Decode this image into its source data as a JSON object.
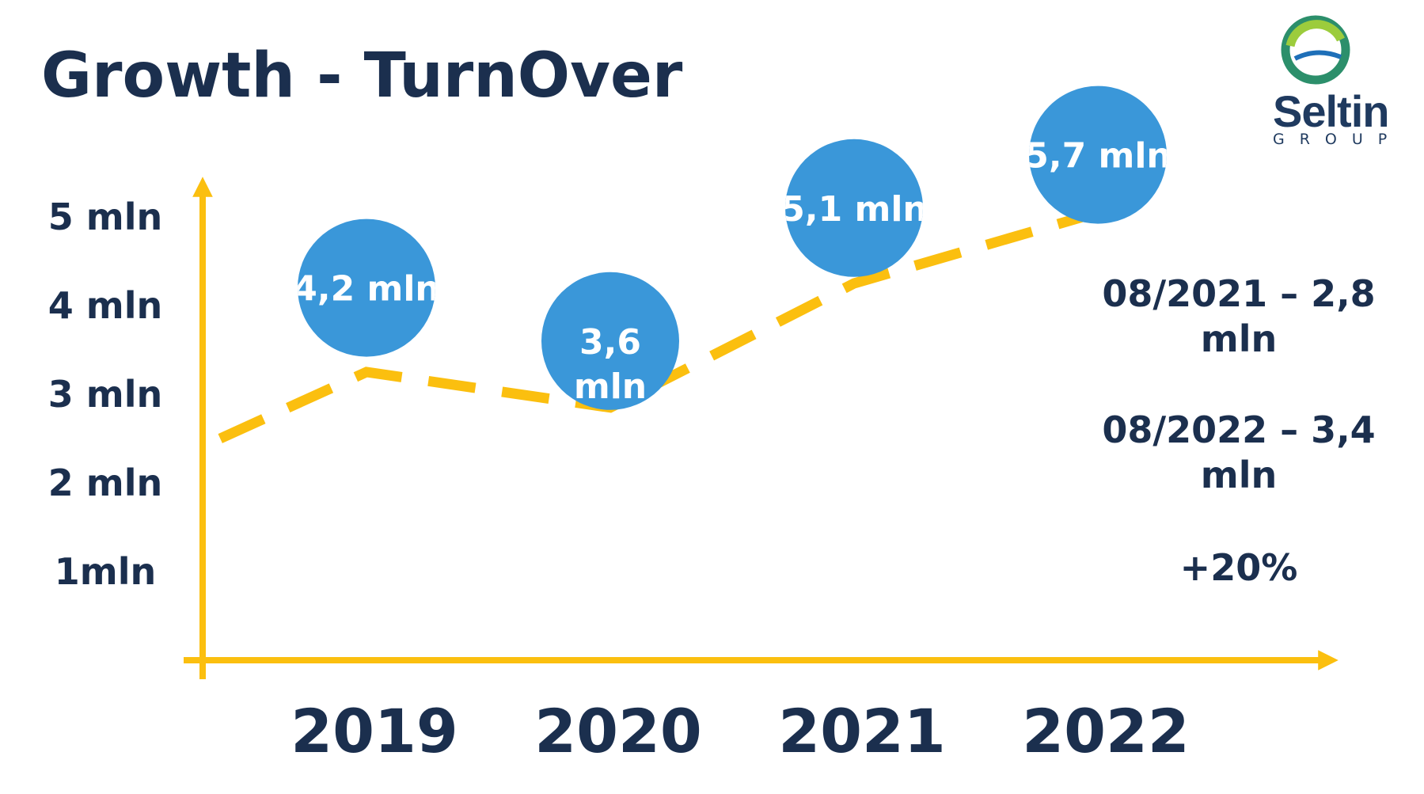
{
  "title": "Growth - TurnOver",
  "logo": {
    "name": "Seltin",
    "sub": "GROUP"
  },
  "colors": {
    "axis": "#fbbf0f",
    "bubble": "#3a97d9",
    "text": "#1b2f4e"
  },
  "chart_data": {
    "type": "scatter",
    "title": "Growth - TurnOver",
    "categories": [
      "2019",
      "2020",
      "2021",
      "2022"
    ],
    "values": [
      4.2,
      3.6,
      5.1,
      5.7
    ],
    "value_labels": [
      "4,2 mln",
      "3,6 mln",
      "5,1 mln",
      "5,7 mln"
    ],
    "yticks": [
      {
        "value": 1,
        "label": "1mln"
      },
      {
        "value": 2,
        "label": "2 mln"
      },
      {
        "value": 3,
        "label": "3 mln"
      },
      {
        "value": 4,
        "label": "4 mln"
      },
      {
        "value": 5,
        "label": "5 mln"
      }
    ],
    "ylim": [
      0,
      5.8
    ],
    "trend_line": {
      "style": "dashed",
      "points": [
        [
          -0.6,
          2.5
        ],
        [
          0,
          3.25
        ],
        [
          1,
          2.85
        ],
        [
          2,
          4.25
        ],
        [
          3,
          5.05
        ]
      ]
    },
    "grid": false,
    "legend": "none"
  },
  "notes": [
    {
      "line1": "08/2021 – 2,8",
      "line2": "mln"
    },
    {
      "line1": "08/2022 – 3,4",
      "line2": "mln"
    },
    {
      "line1": "+20%",
      "line2": ""
    }
  ]
}
